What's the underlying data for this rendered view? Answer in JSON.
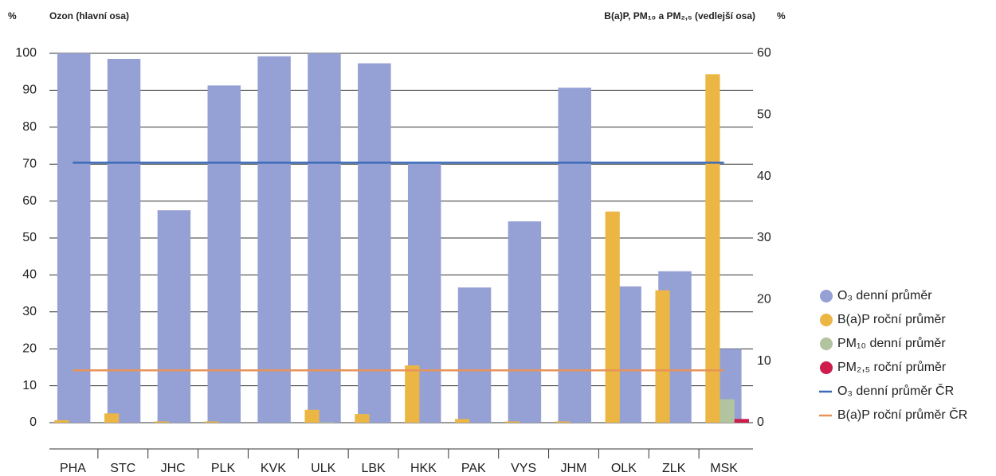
{
  "chart_data": {
    "type": "bar",
    "y_unit": "%",
    "y_title": "Ozon (hlavní osa)",
    "y2_title": "B(a)P, PM₁₀ a PM₂,₅ (vedlejší osa)",
    "y2_unit": "%",
    "categories": [
      "PHA",
      "STC",
      "JHC",
      "PLK",
      "KVK",
      "ULK",
      "LBK",
      "HKK",
      "PAK",
      "VYS",
      "JHM",
      "OLK",
      "ZLK",
      "MSK"
    ],
    "series": [
      {
        "name": "O₃ denní průměr",
        "color": "#95a0d4",
        "axis": "y",
        "values": [
          100,
          98.5,
          57.5,
          91.3,
          99.2,
          100,
          97.3,
          70.5,
          36.6,
          54.5,
          90.7,
          36.9,
          41,
          20
        ]
      },
      {
        "name": "B(a)P roční průměr",
        "color": "#ecb644",
        "axis": "y2",
        "values": [
          0.4,
          1.5,
          0.2,
          0.2,
          0,
          2.1,
          1.4,
          9.3,
          0.6,
          0.2,
          0.2,
          34.3,
          21.5,
          56.6
        ]
      },
      {
        "name": "PM₁₀ denní průměr",
        "color": "#b2c49f",
        "axis": "y2",
        "values": [
          0,
          0,
          0,
          0,
          0,
          0.1,
          0,
          0,
          0,
          0,
          0,
          0,
          0,
          3.8
        ]
      },
      {
        "name": "PM₂,₅ roční průměr",
        "color": "#cc1d4c",
        "axis": "y2",
        "values": [
          0,
          0,
          0,
          0,
          0,
          0,
          0,
          0,
          0,
          0,
          0,
          0,
          0,
          0.6
        ]
      },
      {
        "name": "O₃ denní průměr ČR",
        "color": "#3b6bb8",
        "axis": "y",
        "type": "line",
        "values": [
          70.4,
          70.4,
          70.4,
          70.4,
          70.4,
          70.4,
          70.4,
          70.4,
          70.4,
          70.4,
          70.4,
          70.4,
          70.4,
          70.4
        ]
      },
      {
        "name": "B(a)P roční průměr ČR",
        "color": "#e8935a",
        "axis": "y2",
        "type": "line",
        "values": [
          8.5,
          8.5,
          8.5,
          8.5,
          8.5,
          8.5,
          8.5,
          8.5,
          8.5,
          8.5,
          8.5,
          8.5,
          8.5,
          8.5
        ]
      }
    ],
    "ylim": [
      0,
      100
    ],
    "yticks": [
      0,
      10,
      20,
      30,
      40,
      50,
      60,
      70,
      80,
      90,
      100
    ],
    "y2lim": [
      0,
      60
    ],
    "y2ticks": [
      0,
      10,
      20,
      30,
      40,
      50,
      60
    ],
    "grid": true,
    "legend": "right"
  }
}
